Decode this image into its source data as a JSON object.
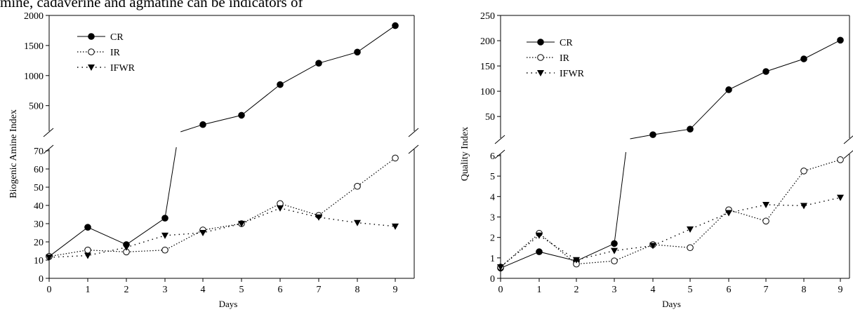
{
  "caption_fragment": "mine, cadaverine and agmatine can be indicators of",
  "chart_data": [
    {
      "type": "line",
      "xlabel": "Days",
      "ylabel": "Biogenic Amine Index",
      "x": [
        0,
        1,
        2,
        3,
        4,
        5,
        6,
        7,
        8,
        9
      ],
      "xticks": [
        "0",
        "1",
        "2",
        "3",
        "4",
        "5",
        "6",
        "7",
        "8",
        "9"
      ],
      "broken_y_axis": true,
      "lower_ylim": [
        0,
        70
      ],
      "lower_yticks": [
        "0",
        "10",
        "20",
        "30",
        "40",
        "50",
        "60",
        "70"
      ],
      "upper_ylim": [
        100,
        2000
      ],
      "upper_yticks": [
        "500",
        "1000",
        "1500",
        "2000"
      ],
      "legend": "top-left",
      "series": [
        {
          "name": "CR",
          "marker": "filled-circle",
          "line": "solid",
          "values": [
            12,
            28,
            18.5,
            33,
            185,
            340,
            850,
            1205,
            1390,
            1830
          ]
        },
        {
          "name": "IR",
          "marker": "open-circle",
          "line": "dotted",
          "values": [
            12,
            15.5,
            14.5,
            15.5,
            26.5,
            30,
            41,
            34.5,
            50.5,
            66
          ]
        },
        {
          "name": "IFWR",
          "marker": "filled-down-triangle",
          "line": "dash-dot",
          "values": [
            11.5,
            12.5,
            17,
            23.5,
            25,
            30,
            38.5,
            33.5,
            30.5,
            28.5
          ]
        }
      ]
    },
    {
      "type": "line",
      "xlabel": "Days",
      "ylabel": "Quality Index",
      "x": [
        0,
        1,
        2,
        3,
        4,
        5,
        6,
        7,
        8,
        9
      ],
      "xticks": [
        "0",
        "1",
        "2",
        "3",
        "4",
        "5",
        "6",
        "7",
        "8",
        "9"
      ],
      "broken_y_axis": true,
      "lower_ylim": [
        0,
        6
      ],
      "lower_yticks": [
        "0",
        "1",
        "2",
        "3",
        "4",
        "5",
        "6"
      ],
      "upper_ylim": [
        10,
        250
      ],
      "upper_yticks": [
        "50",
        "100",
        "150",
        "200",
        "250"
      ],
      "legend": "top-left",
      "series": [
        {
          "name": "CR",
          "marker": "filled-circle",
          "line": "solid",
          "values": [
            0.5,
            1.3,
            0.85,
            1.7,
            14,
            25,
            103,
            139,
            164,
            201
          ]
        },
        {
          "name": "IR",
          "marker": "open-circle",
          "line": "dotted",
          "values": [
            0.55,
            2.2,
            0.7,
            0.85,
            1.65,
            1.5,
            3.35,
            2.8,
            5.25,
            5.8
          ]
        },
        {
          "name": "IFWR",
          "marker": "filled-down-triangle",
          "line": "dash-dot",
          "values": [
            0.55,
            2.1,
            0.9,
            1.35,
            1.6,
            2.4,
            3.2,
            3.6,
            3.55,
            3.95
          ]
        }
      ]
    }
  ]
}
